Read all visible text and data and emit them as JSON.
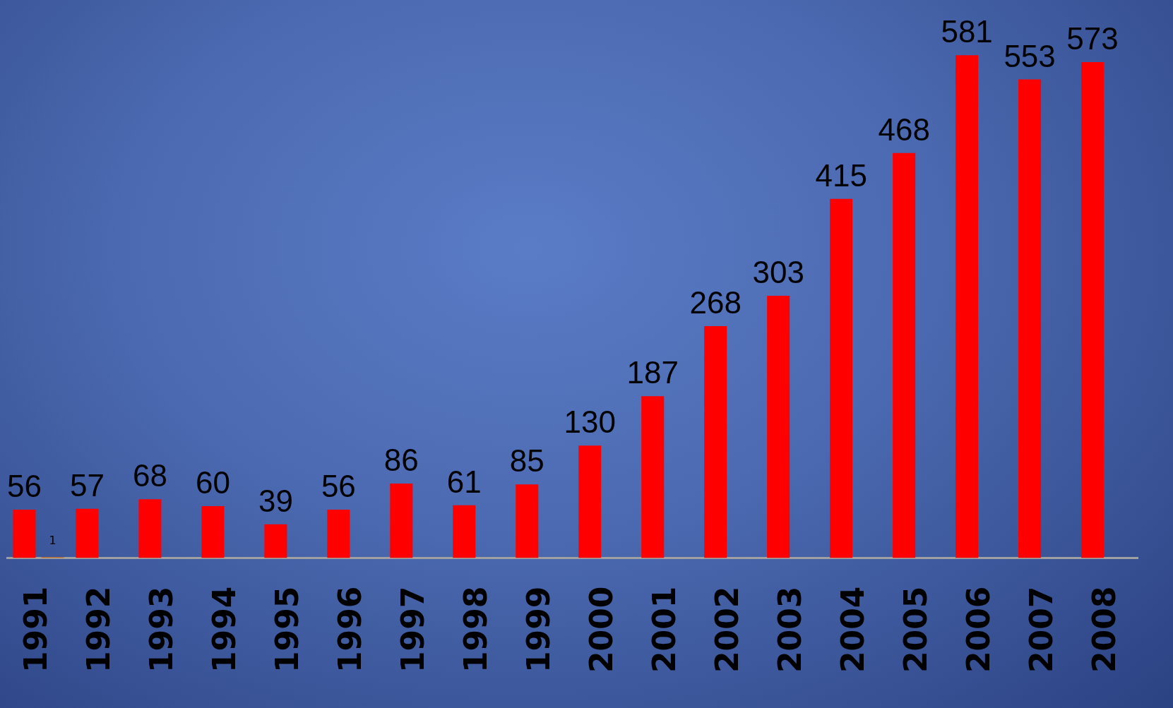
{
  "chart_data": {
    "type": "bar",
    "categories": [
      "1991",
      "1992",
      "1993",
      "1994",
      "1995",
      "1996",
      "1997",
      "1998",
      "1999",
      "2000",
      "2001",
      "2002",
      "2003",
      "2004",
      "2005",
      "2006",
      "2007",
      "2008"
    ],
    "series": [
      {
        "color": "#ff0000",
        "values": [
          56,
          57,
          68,
          60,
          39,
          56,
          86,
          61,
          85,
          130,
          187,
          268,
          303,
          415,
          468,
          581,
          553,
          573
        ]
      },
      {
        "color": "#c55a11",
        "values": [
          1,
          null,
          null,
          null,
          null,
          null,
          null,
          null,
          null,
          null,
          null,
          null,
          null,
          null,
          null,
          null,
          null,
          null
        ]
      }
    ],
    "data_labels": true,
    "tick_labels": "x",
    "grid": false,
    "legend": false
  }
}
